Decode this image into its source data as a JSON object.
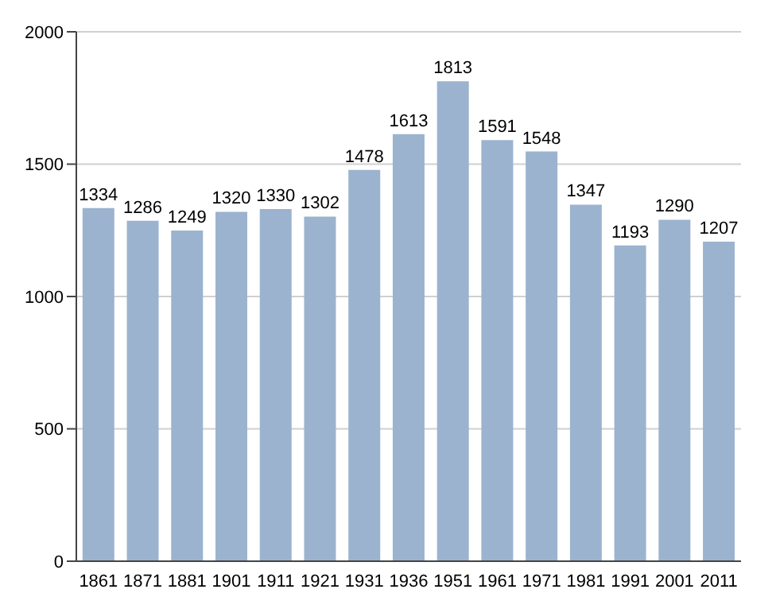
{
  "chart_data": {
    "type": "bar",
    "categories": [
      "1861",
      "1871",
      "1881",
      "1901",
      "1911",
      "1921",
      "1931",
      "1936",
      "1951",
      "1961",
      "1971",
      "1981",
      "1991",
      "2001",
      "2011"
    ],
    "values": [
      1334,
      1286,
      1249,
      1320,
      1330,
      1302,
      1478,
      1613,
      1813,
      1591,
      1548,
      1347,
      1193,
      1290,
      1207
    ],
    "color": "#9bb3cf",
    "ylim": [
      0,
      2000
    ],
    "yticks": [
      0,
      500,
      1000,
      1500,
      2000
    ],
    "grid": "y",
    "data_labels": true
  }
}
